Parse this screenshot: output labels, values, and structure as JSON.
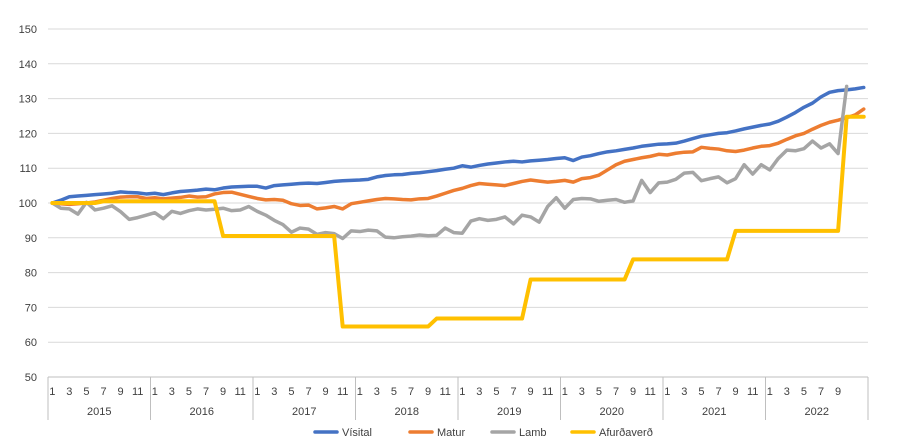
{
  "chart_data": {
    "type": "line",
    "title": "",
    "xlabel": "",
    "ylabel": "",
    "ylim": [
      50,
      150
    ],
    "yticks": [
      50,
      60,
      70,
      80,
      90,
      100,
      110,
      120,
      130,
      140,
      150
    ],
    "grid": true,
    "legend_position": "bottom",
    "years": [
      "2015",
      "2016",
      "2017",
      "2018",
      "2019",
      "2020",
      "2021",
      "2022"
    ],
    "month_labels": [
      "1",
      "3",
      "5",
      "7",
      "9",
      "11"
    ],
    "last_year_month_labels": [
      "1",
      "3",
      "5",
      "7",
      "9"
    ],
    "series": [
      {
        "name": "Vísital",
        "color": "#4472C4",
        "values": [
          100,
          100.8,
          101.8,
          102.0,
          102.2,
          102.4,
          102.6,
          102.8,
          103.2,
          103.0,
          102.9,
          102.6,
          102.8,
          102.4,
          102.9,
          103.3,
          103.5,
          103.7,
          104.0,
          103.8,
          104.3,
          104.6,
          104.7,
          104.8,
          104.8,
          104.3,
          105.0,
          105.2,
          105.4,
          105.6,
          105.7,
          105.6,
          105.9,
          106.2,
          106.4,
          106.5,
          106.6,
          106.8,
          107.5,
          107.9,
          108.1,
          108.2,
          108.5,
          108.7,
          109.0,
          109.3,
          109.7,
          110.0,
          110.7,
          110.3,
          110.8,
          111.2,
          111.5,
          111.8,
          112.0,
          111.8,
          112.1,
          112.3,
          112.5,
          112.8,
          113.0,
          112.2,
          113.2,
          113.6,
          114.2,
          114.7,
          115.0,
          115.4,
          115.8,
          116.3,
          116.6,
          116.9,
          117.0,
          117.2,
          117.8,
          118.5,
          119.2,
          119.6,
          120.0,
          120.2,
          120.7,
          121.3,
          121.8,
          122.3,
          122.7,
          123.5,
          124.7,
          126.0,
          127.5,
          128.7,
          130.5,
          131.8,
          132.3,
          132.5,
          132.8,
          133.2
        ]
      },
      {
        "name": "Matur",
        "color": "#ED7D31",
        "values": [
          100,
          99.8,
          99.6,
          99.8,
          100.0,
          100.3,
          100.8,
          101.3,
          101.7,
          101.8,
          101.8,
          101.3,
          101.5,
          101.2,
          101.4,
          101.6,
          102.0,
          101.7,
          101.8,
          102.6,
          103.0,
          103.1,
          102.5,
          101.9,
          101.3,
          100.9,
          101.0,
          100.8,
          99.8,
          99.3,
          99.4,
          98.3,
          98.6,
          99.0,
          98.3,
          99.8,
          100.2,
          100.6,
          101.0,
          101.3,
          101.2,
          101.0,
          100.9,
          101.2,
          101.3,
          102.0,
          102.8,
          103.6,
          104.2,
          105.0,
          105.6,
          105.4,
          105.2,
          105.0,
          105.6,
          106.2,
          106.6,
          106.3,
          106.0,
          106.2,
          106.5,
          106.0,
          107.0,
          107.3,
          108.0,
          109.5,
          111.0,
          112.0,
          112.5,
          113.0,
          113.4,
          114.0,
          113.8,
          114.3,
          114.6,
          114.7,
          116.0,
          115.7,
          115.5,
          115.0,
          114.8,
          115.2,
          115.8,
          116.3,
          116.5,
          117.2,
          118.3,
          119.3,
          120.0,
          121.2,
          122.3,
          123.2,
          123.8,
          124.5,
          125.3,
          127.0
        ]
      },
      {
        "name": "Lamb",
        "color": "#A5A5A5",
        "values": [
          100,
          98.5,
          98.3,
          96.8,
          100.2,
          98.0,
          98.5,
          99.2,
          97.5,
          95.3,
          95.8,
          96.5,
          97.2,
          95.5,
          97.6,
          97.0,
          97.8,
          98.3,
          98.0,
          98.2,
          98.5,
          97.8,
          98.0,
          99.0,
          97.6,
          96.5,
          95.0,
          93.8,
          91.6,
          92.8,
          92.5,
          91.0,
          91.5,
          91.2,
          89.8,
          92.0,
          91.8,
          92.2,
          92.0,
          90.2,
          90.0,
          90.3,
          90.5,
          90.8,
          90.6,
          90.7,
          92.8,
          91.5,
          91.3,
          94.8,
          95.5,
          95.0,
          95.3,
          96.0,
          94.0,
          96.5,
          96.0,
          94.5,
          99.0,
          101.5,
          98.5,
          101.0,
          101.3,
          101.2,
          100.5,
          100.8,
          101.0,
          100.2,
          100.6,
          106.5,
          103.0,
          105.8,
          106.0,
          106.8,
          108.6,
          108.8,
          106.4,
          107.0,
          107.5,
          105.8,
          107.0,
          111.0,
          108.3,
          111.0,
          109.5,
          112.8,
          115.2,
          115.0,
          115.6,
          117.8,
          115.8,
          117.0,
          114.2,
          133.5
        ]
      },
      {
        "name": "Afurðaverð",
        "color": "#FFC000",
        "values": [
          100,
          100,
          100,
          100,
          100,
          100,
          100.5,
          100.5,
          100.5,
          100.5,
          100.5,
          100.5,
          100.5,
          100.5,
          100.5,
          100.5,
          100.5,
          100.5,
          100.5,
          100.5,
          90.5,
          90.5,
          90.5,
          90.5,
          90.5,
          90.5,
          90.5,
          90.5,
          90.5,
          90.5,
          90.5,
          90.5,
          90.5,
          90.5,
          64.5,
          64.5,
          64.5,
          64.5,
          64.5,
          64.5,
          64.5,
          64.5,
          64.5,
          64.5,
          64.5,
          66.8,
          66.8,
          66.8,
          66.8,
          66.8,
          66.8,
          66.8,
          66.8,
          66.8,
          66.8,
          66.8,
          78.0,
          78.0,
          78.0,
          78.0,
          78.0,
          78.0,
          78.0,
          78.0,
          78.0,
          78.0,
          78.0,
          78.0,
          83.8,
          83.8,
          83.8,
          83.8,
          83.8,
          83.8,
          83.8,
          83.8,
          83.8,
          83.8,
          83.8,
          83.8,
          92.0,
          92.0,
          92.0,
          92.0,
          92.0,
          92.0,
          92.0,
          92.0,
          92.0,
          92.0,
          92.0,
          92.0,
          92.0,
          124.8,
          124.8,
          124.8
        ]
      }
    ]
  }
}
